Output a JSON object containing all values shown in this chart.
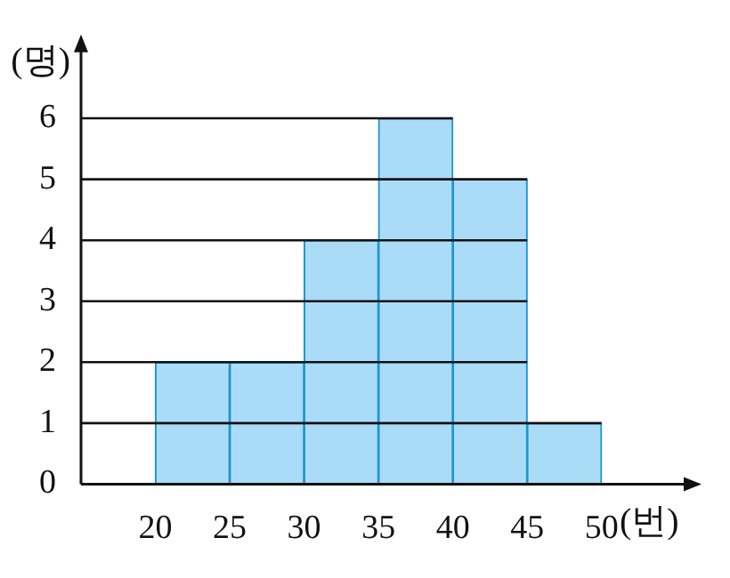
{
  "chart_data": {
    "type": "histogram",
    "xlabel": "(번)",
    "ylabel": "(명)",
    "bins": [
      20,
      25,
      30,
      35,
      40,
      45,
      50
    ],
    "values": [
      2,
      2,
      4,
      6,
      5,
      1
    ],
    "color": "#aadcf7",
    "xlim": [
      15,
      56
    ],
    "xticks": [
      20,
      25,
      30,
      35,
      40,
      45,
      50
    ],
    "ylim": [
      0,
      7.2
    ],
    "yticks": [
      0,
      1,
      2,
      3,
      4,
      5,
      6
    ],
    "grid": "y",
    "legend": false
  }
}
